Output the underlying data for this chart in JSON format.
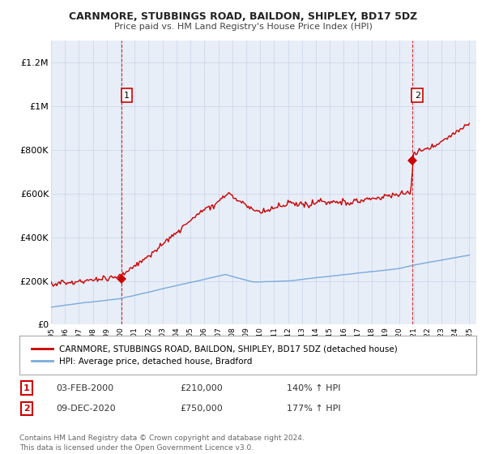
{
  "title": "CARNMORE, STUBBINGS ROAD, BAILDON, SHIPLEY, BD17 5DZ",
  "subtitle": "Price paid vs. HM Land Registry's House Price Index (HPI)",
  "ylim": [
    0,
    1300000
  ],
  "yticks": [
    0,
    200000,
    400000,
    600000,
    800000,
    1000000,
    1200000
  ],
  "ytick_labels": [
    "£0",
    "£200K",
    "£400K",
    "£600K",
    "£800K",
    "£1M",
    "£1.2M"
  ],
  "x_start_year": 1995,
  "x_end_year": 2025,
  "house_color": "#cc0000",
  "hpi_color": "#7aaadd",
  "chart_bg": "#e8eef8",
  "sale1_year": 2000.08,
  "sale1_price": 210000,
  "sale2_year": 2020.92,
  "sale2_price": 750000,
  "legend_house_label": "CARNMORE, STUBBINGS ROAD, BAILDON, SHIPLEY, BD17 5DZ (detached house)",
  "legend_hpi_label": "HPI: Average price, detached house, Bradford",
  "table_row1": [
    "1",
    "03-FEB-2000",
    "£210,000",
    "140% ↑ HPI"
  ],
  "table_row2": [
    "2",
    "09-DEC-2020",
    "£750,000",
    "177% ↑ HPI"
  ],
  "footnote": "Contains HM Land Registry data © Crown copyright and database right 2024.\nThis data is licensed under the Open Government Licence v3.0.",
  "bg_color": "#ffffff",
  "grid_color": "#c8d4e8"
}
